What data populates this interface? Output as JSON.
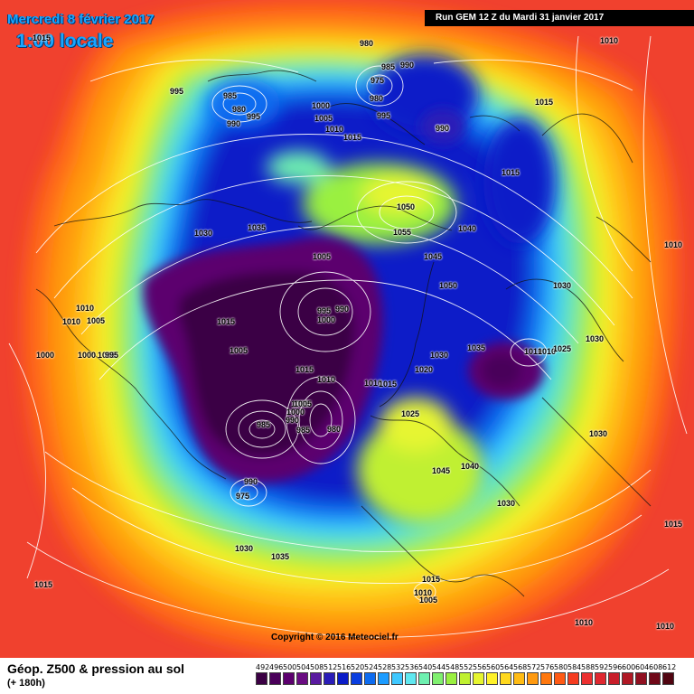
{
  "header": {
    "date": "Mercredi 8 février 2017",
    "time": "1:00 locale",
    "run": "Run GEM 12 Z du Mardi 31 janvier 2017"
  },
  "copyright": "Copyright © 2016 Meteociel.fr",
  "footer": {
    "title": "Géop. Z500 & pression au sol",
    "subtitle": "(+ 180h)"
  },
  "legend": {
    "values": [
      "492",
      "496",
      "500",
      "504",
      "508",
      "512",
      "516",
      "520",
      "524",
      "528",
      "532",
      "536",
      "540",
      "544",
      "548",
      "552",
      "556",
      "560",
      "564",
      "568",
      "572",
      "576",
      "580",
      "584",
      "588",
      "592",
      "596",
      "600",
      "604",
      "608",
      "612"
    ],
    "colors": [
      "#3b0044",
      "#4a005a",
      "#5c006e",
      "#6a0c82",
      "#5a1aa0",
      "#2a1db8",
      "#0b1cc8",
      "#0a3ee0",
      "#0e6cf0",
      "#1c9cff",
      "#3fc8ff",
      "#60e8f0",
      "#6ef0b0",
      "#80f070",
      "#9af040",
      "#c0f030",
      "#e6f530",
      "#fff22a",
      "#ffd81e",
      "#ffbc14",
      "#ff9a10",
      "#ff780e",
      "#ff5a14",
      "#f53c20",
      "#ec3030",
      "#e02830",
      "#c81e2a",
      "#b01824",
      "#901020",
      "#700818",
      "#500410"
    ]
  },
  "pressure_labels": [
    "1015",
    "980",
    "985",
    "990",
    "975",
    "980",
    "990",
    "1010",
    "995",
    "985",
    "980",
    "995",
    "990",
    "1000",
    "1005",
    "1010",
    "1015",
    "995",
    "990",
    "1015",
    "1015",
    "1050",
    "1040",
    "1055",
    "1045",
    "1050",
    "1035",
    "1030",
    "1030",
    "1005",
    "995",
    "990",
    "1000",
    "1015",
    "1010",
    "1005",
    "1010",
    "1000",
    "1005",
    "1005",
    "1000",
    "995",
    "1015",
    "1010",
    "1005",
    "1010",
    "1000",
    "990",
    "985",
    "980",
    "985",
    "1005",
    "1010",
    "1020",
    "1025",
    "1030",
    "1015",
    "1010",
    "1035",
    "1030",
    "1025",
    "1045",
    "1040",
    "1030",
    "1030",
    "990",
    "975",
    "1030",
    "1035",
    "1015",
    "1015",
    "1010",
    "1005",
    "1010",
    "1010",
    "1015",
    "1010"
  ]
}
